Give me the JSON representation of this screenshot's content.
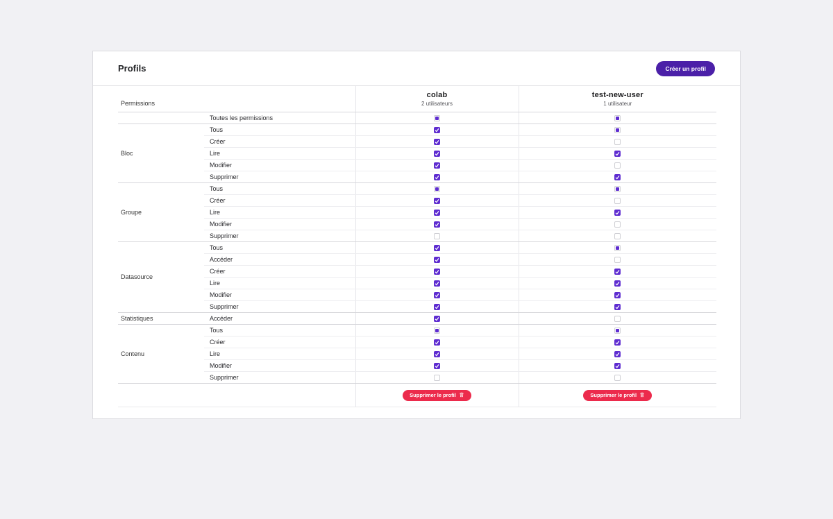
{
  "page": {
    "title": "Profils",
    "create_button": "Créer un profil"
  },
  "colors": {
    "accent_purple": "#4b20a8",
    "checkbox_purple": "#5e2cd0",
    "delete_red": "#ec2b4c"
  },
  "table": {
    "permissions_header": "Permissions",
    "profiles": [
      {
        "name": "colab",
        "users": "2 utilisateurs",
        "delete_label": "Supprimer le profil"
      },
      {
        "name": "test-new-user",
        "users": "1 utilisateur",
        "delete_label": "Supprimer le profil"
      }
    ],
    "groups": [
      {
        "category": "",
        "rows": [
          {
            "label": "Toutes les permissions",
            "states": [
              "indeterminate",
              "indeterminate"
            ]
          }
        ]
      },
      {
        "category": "Bloc",
        "rows": [
          {
            "label": "Tous",
            "states": [
              "checked",
              "indeterminate"
            ]
          },
          {
            "label": "Créer",
            "states": [
              "checked",
              "unchecked"
            ]
          },
          {
            "label": "Lire",
            "states": [
              "checked",
              "checked"
            ]
          },
          {
            "label": "Modifier",
            "states": [
              "checked",
              "unchecked"
            ]
          },
          {
            "label": "Supprimer",
            "states": [
              "checked",
              "checked"
            ]
          }
        ]
      },
      {
        "category": "Groupe",
        "rows": [
          {
            "label": "Tous",
            "states": [
              "indeterminate",
              "indeterminate"
            ]
          },
          {
            "label": "Créer",
            "states": [
              "checked",
              "unchecked"
            ]
          },
          {
            "label": "Lire",
            "states": [
              "checked",
              "checked"
            ]
          },
          {
            "label": "Modifier",
            "states": [
              "checked",
              "unchecked"
            ]
          },
          {
            "label": "Supprimer",
            "states": [
              "unchecked",
              "unchecked"
            ]
          }
        ]
      },
      {
        "category": "Datasource",
        "rows": [
          {
            "label": "Tous",
            "states": [
              "checked",
              "indeterminate"
            ]
          },
          {
            "label": "Accéder",
            "states": [
              "checked",
              "unchecked"
            ]
          },
          {
            "label": "Créer",
            "states": [
              "checked",
              "checked"
            ]
          },
          {
            "label": "Lire",
            "states": [
              "checked",
              "checked"
            ]
          },
          {
            "label": "Modifier",
            "states": [
              "checked",
              "checked"
            ]
          },
          {
            "label": "Supprimer",
            "states": [
              "checked",
              "checked"
            ]
          }
        ]
      },
      {
        "category": "Statistiques",
        "rows": [
          {
            "label": "Accéder",
            "states": [
              "checked",
              "unchecked"
            ]
          }
        ]
      },
      {
        "category": "Contenu",
        "rows": [
          {
            "label": "Tous",
            "states": [
              "indeterminate",
              "indeterminate"
            ]
          },
          {
            "label": "Créer",
            "states": [
              "checked",
              "checked"
            ]
          },
          {
            "label": "Lire",
            "states": [
              "checked",
              "checked"
            ]
          },
          {
            "label": "Modifier",
            "states": [
              "checked",
              "checked"
            ]
          },
          {
            "label": "Supprimer",
            "states": [
              "unchecked",
              "unchecked"
            ]
          }
        ]
      }
    ]
  }
}
